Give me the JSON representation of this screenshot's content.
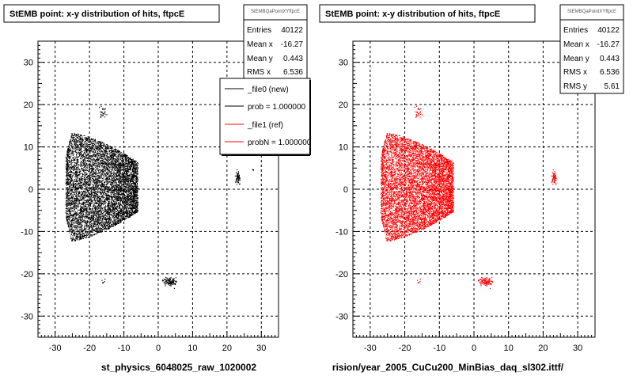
{
  "footer_text": "",
  "chart_data": [
    {
      "type": "scatter",
      "title": "StEMB point: x-y distribution of hits, ftpcE",
      "xlabel": "st_physics_6048025_raw_1020002",
      "ylabel": "",
      "xlim": [
        -35,
        35
      ],
      "ylim": [
        -35,
        35
      ],
      "xticks": [
        -30,
        -20,
        -10,
        0,
        10,
        20,
        30
      ],
      "yticks": [
        -30,
        -20,
        -10,
        0,
        10,
        20,
        30
      ],
      "grid": true,
      "marker_color": "#000000",
      "stats": {
        "name": "StEMBQaPointXYftpcE",
        "rows": [
          {
            "label": "Entries",
            "value": "40122"
          },
          {
            "label": "Mean x",
            "value": "-16.27"
          },
          {
            "label": "Mean y",
            "value": "0.443"
          },
          {
            "label": "RMS x",
            "value": "6.536"
          }
        ]
      },
      "legend": {
        "placement": "top-right",
        "entries": [
          {
            "label": "_file0 (new)",
            "color": "#000000"
          },
          {
            "label": "prob = 1.000000",
            "color": "#000000"
          },
          {
            "label": "_file1 (ref)",
            "color": "#ff0000"
          },
          {
            "label": "probN = 1.000000",
            "color": "#ff0000"
          }
        ]
      },
      "clusters": [
        {
          "shape": "fan",
          "x_range": [
            -27,
            -6
          ],
          "y_half_width": 13,
          "density": 9000
        },
        {
          "shape": "blob",
          "cx": -16.5,
          "cy": 18,
          "rx": 0.7,
          "ry": 1.2,
          "n": 25
        },
        {
          "shape": "blob",
          "cx": 23,
          "cy": 2.5,
          "rx": 0.6,
          "ry": 1.5,
          "n": 60
        },
        {
          "shape": "blob",
          "cx": 3.5,
          "cy": -22,
          "rx": 1.6,
          "ry": 0.8,
          "n": 110
        },
        {
          "shape": "blob",
          "cx": -16,
          "cy": -22,
          "rx": 0.5,
          "ry": 0.6,
          "n": 6
        },
        {
          "shape": "blob",
          "cx": 27.5,
          "cy": 4.5,
          "rx": 0.3,
          "ry": 0.4,
          "n": 3
        }
      ]
    },
    {
      "type": "scatter",
      "title": "StEMB point: x-y distribution of hits, ftpcE",
      "xlabel": "rision/year_2005_CuCu200_MinBias_daq_sl302.ittf/",
      "ylabel": "",
      "xlim": [
        -35,
        35
      ],
      "ylim": [
        -35,
        35
      ],
      "xticks": [
        -30,
        -20,
        -10,
        0,
        10,
        20,
        30
      ],
      "yticks": [
        -30,
        -20,
        -10,
        0,
        10,
        20,
        30
      ],
      "grid": true,
      "marker_color": "#ff0000",
      "stats": {
        "name": "StEMBQaPointXYftpcE",
        "rows": [
          {
            "label": "Entries",
            "value": "40122"
          },
          {
            "label": "Mean x",
            "value": "-16.27"
          },
          {
            "label": "Mean y",
            "value": "0.443"
          },
          {
            "label": "RMS x",
            "value": "6.536"
          },
          {
            "label": "RMS y",
            "value": "5.61"
          }
        ]
      },
      "clusters": [
        {
          "shape": "fan",
          "x_range": [
            -27,
            -6
          ],
          "y_half_width": 13,
          "density": 9000
        },
        {
          "shape": "blob",
          "cx": -16.5,
          "cy": 18,
          "rx": 0.7,
          "ry": 1.2,
          "n": 25
        },
        {
          "shape": "blob",
          "cx": 23,
          "cy": 2.5,
          "rx": 0.6,
          "ry": 1.5,
          "n": 60
        },
        {
          "shape": "blob",
          "cx": 3.5,
          "cy": -22,
          "rx": 1.6,
          "ry": 0.8,
          "n": 110
        },
        {
          "shape": "blob",
          "cx": -16,
          "cy": -22,
          "rx": 0.5,
          "ry": 0.6,
          "n": 6
        }
      ]
    }
  ]
}
